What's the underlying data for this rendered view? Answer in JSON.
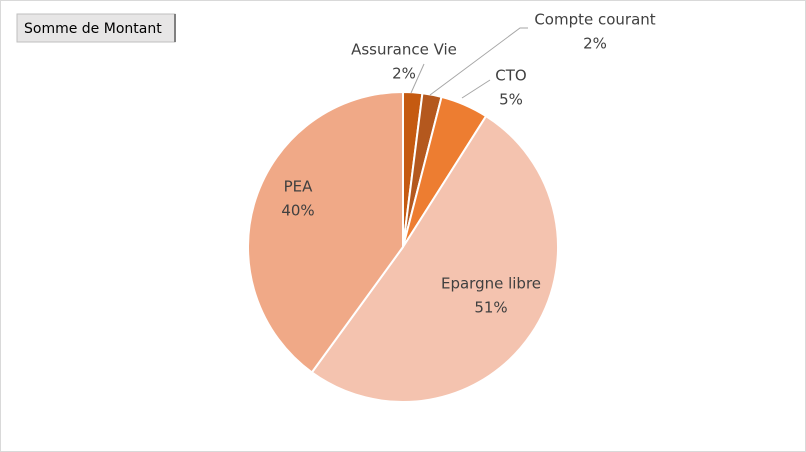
{
  "chart_data": {
    "type": "pie",
    "title": "Somme de Montant",
    "categories": [
      "Assurance Vie",
      "Compte courant",
      "CTO",
      "Epargne libre",
      "PEA"
    ],
    "values": [
      2,
      2,
      5,
      51,
      40
    ],
    "value_labels": [
      "2%",
      "2%",
      "5%",
      "51%",
      "40%"
    ],
    "colors": [
      "#c55a11",
      "#b4581e",
      "#ed7d31",
      "#f4c3af",
      "#f0a987"
    ]
  }
}
